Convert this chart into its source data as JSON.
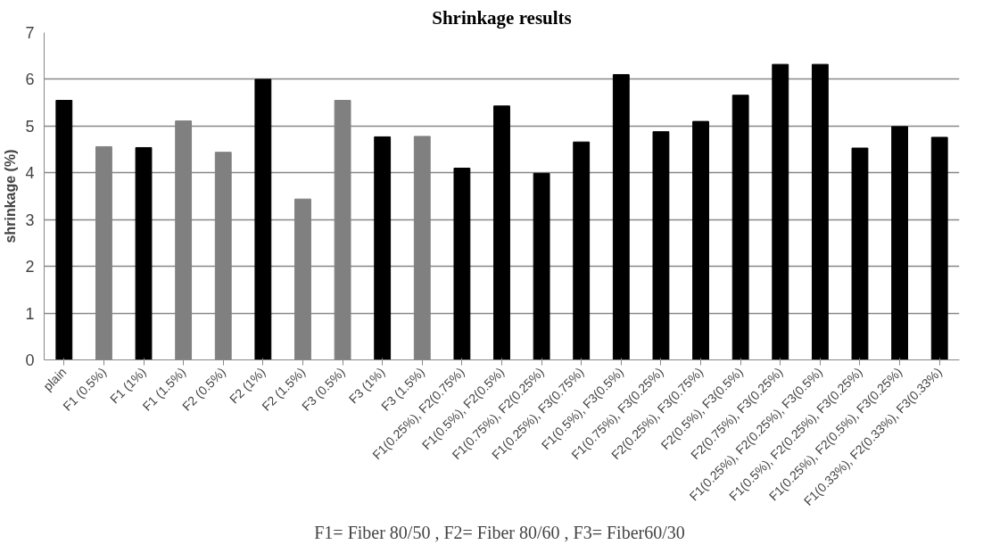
{
  "chart_data": {
    "type": "bar",
    "title": "Shrinkage results",
    "ylabel": "shrinkage (%)",
    "categories": [
      "plain",
      "F1 (0.5%)",
      "F1 (1%)",
      "F1 (1.5%)",
      "F2 (0.5%)",
      "F2 (1%)",
      "F2 (1.5%)",
      "F3 (0.5%)",
      "F3 (1%)",
      "F3 (1.5%)",
      "F1(0.25%), F2(0.75%)",
      "F1(0.5%), F2(0.5%)",
      "F1(0.75%), F2(0.25%)",
      "F1(0.25%), F3(0.75%)",
      "F1(0.5%), F3(0.5%)",
      "F1(0.75%), F3(0.25%)",
      "F2(0.25%), F3(0.75%)",
      "F2(0.5%), F3(0.5%)",
      "F2(0.75%), F3(0.25%)",
      "F1(0.25%), F2(0.25%), F3(0.5%)",
      "F1(0.5%), F2(0.25%), F3(0.25%)",
      "F1(0.25%), F2(0.5%), F3(0.25%)",
      "F1(0.33%), F2(0.33%), F3(0.33%)"
    ],
    "values": [
      5.55,
      4.56,
      4.54,
      5.11,
      4.44,
      6.0,
      3.44,
      5.55,
      4.77,
      4.78,
      4.1,
      5.43,
      3.99,
      4.66,
      6.1,
      4.88,
      5.1,
      5.66,
      6.32,
      6.32,
      4.53,
      4.99,
      4.76
    ],
    "colors": [
      "#000000",
      "#808080",
      "#000000",
      "#808080",
      "#808080",
      "#000000",
      "#808080",
      "#808080",
      "#000000",
      "#808080",
      "#000000",
      "#000000",
      "#000000",
      "#000000",
      "#000000",
      "#000000",
      "#000000",
      "#000000",
      "#000000",
      "#000000",
      "#000000",
      "#000000",
      "#000000"
    ],
    "ylim": [
      0,
      7
    ],
    "yticks": [
      0,
      1,
      2,
      3,
      4,
      5,
      6,
      7
    ],
    "grid": "y",
    "annotations": [
      "F1= Fiber 80/50 , F2=  Fiber 80/60 , F3= Fiber60/30"
    ]
  }
}
